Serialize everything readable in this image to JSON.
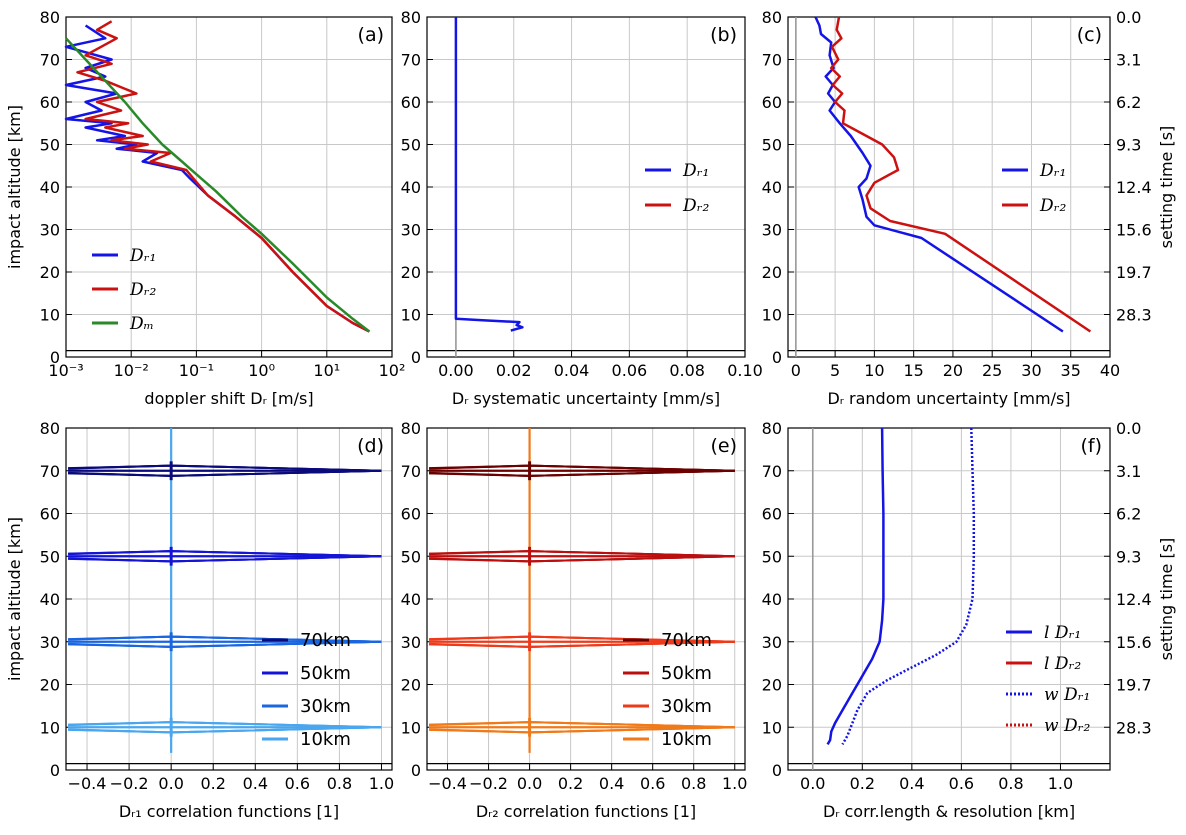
{
  "chart_data": [
    {
      "id": "a",
      "panel_label": "(a)",
      "type": "line",
      "xscale": "log",
      "xlim": [
        0.001,
        100
      ],
      "ylim": [
        0,
        80
      ],
      "xticks": [
        "10⁻³",
        "10⁻²",
        "10⁻¹",
        "10⁰",
        "10¹",
        "10²"
      ],
      "xtick_values": [
        0.001,
        0.01,
        0.1,
        1,
        10,
        100
      ],
      "yticks": [
        "0",
        "10",
        "20",
        "30",
        "40",
        "50",
        "60",
        "70",
        "80"
      ],
      "ylabel": "impact altitude [km]",
      "xlabel": "doppler shift Dᵣ [m/s]",
      "legend_position": "lower-left",
      "series": [
        {
          "name": "Dᵣ₁",
          "color": "#1414e6",
          "x": [
            0.002,
            0.004,
            0.001,
            0.005,
            0.002,
            0.004,
            0.001,
            0.006,
            0.002,
            0.0035,
            0.001,
            0.005,
            0.002,
            0.008,
            0.003,
            0.012,
            0.006,
            0.025,
            0.015,
            0.06,
            0.08,
            0.15,
            0.4,
            1,
            3,
            10,
            25,
            45
          ],
          "y": [
            78,
            75,
            73,
            70,
            68,
            66,
            64,
            62,
            60,
            58,
            56,
            55,
            54,
            52,
            51,
            50,
            49,
            48,
            46,
            44,
            42,
            38,
            33,
            28,
            20,
            12,
            8,
            6
          ]
        },
        {
          "name": "Dᵣ₂",
          "color": "#cc1111",
          "x": [
            0.005,
            0.003,
            0.006,
            0.002,
            0.005,
            0.0015,
            0.004,
            0.012,
            0.003,
            0.007,
            0.002,
            0.009,
            0.004,
            0.015,
            0.005,
            0.018,
            0.008,
            0.04,
            0.02,
            0.07,
            0.09,
            0.15,
            0.4,
            1,
            3,
            10,
            25,
            45
          ],
          "y": [
            79,
            77,
            75,
            71,
            69,
            67,
            65,
            62,
            60,
            58,
            56,
            55,
            54,
            52,
            51,
            50,
            49,
            48,
            46,
            44,
            42,
            38,
            33,
            28,
            20,
            12,
            8,
            6
          ]
        },
        {
          "name": "Dₘ",
          "color": "#2a8a2a",
          "x": [
            0.001,
            0.002,
            0.004,
            0.008,
            0.015,
            0.03,
            0.06,
            0.1,
            0.2,
            0.5,
            1,
            3,
            10,
            25,
            45
          ],
          "y": [
            75,
            70,
            65,
            60,
            55,
            50,
            46,
            43,
            39,
            33,
            29,
            22,
            14,
            9,
            6
          ]
        }
      ]
    },
    {
      "id": "b",
      "panel_label": "(b)",
      "type": "line",
      "xlim": [
        -0.01,
        0.1
      ],
      "ylim": [
        0,
        80
      ],
      "xticks": [
        "0.00",
        "0.02",
        "0.04",
        "0.06",
        "0.08",
        "0.10"
      ],
      "xtick_values": [
        0,
        0.02,
        0.04,
        0.06,
        0.08,
        0.1
      ],
      "yticks": [
        "0",
        "10",
        "20",
        "30",
        "40",
        "50",
        "60",
        "70",
        "80"
      ],
      "xlabel": "Dᵣ systematic uncertainty [mm/s]",
      "legend_position": "center-right",
      "series": [
        {
          "name": "Dᵣ₁",
          "color": "#1414e6",
          "x": [
            0,
            0,
            0,
            0.01,
            0.022,
            0.021,
            0.023,
            0.019
          ],
          "y": [
            80,
            30,
            9,
            8.6,
            8.2,
            7.5,
            7,
            6.2
          ]
        },
        {
          "name": "Dᵣ₂",
          "color": "#cc1111",
          "x": [],
          "y": []
        }
      ]
    },
    {
      "id": "c",
      "panel_label": "(c)",
      "type": "line",
      "xlim": [
        -1,
        40
      ],
      "ylim": [
        0,
        80
      ],
      "xticks": [
        "0",
        "5",
        "10",
        "15",
        "20",
        "25",
        "30",
        "35",
        "40"
      ],
      "xtick_values": [
        0,
        5,
        10,
        15,
        20,
        25,
        30,
        35,
        40
      ],
      "yticks": [
        "0",
        "10",
        "20",
        "30",
        "40",
        "50",
        "60",
        "70",
        "80"
      ],
      "right_axis_label": "setting time [s]",
      "right_ticks": [
        "0.0",
        "3.1",
        "6.2",
        "9.3",
        "12.4",
        "15.6",
        "19.7",
        "28.3"
      ],
      "right_tick_altitudes": [
        80,
        70,
        60,
        50,
        40,
        30,
        20,
        10
      ],
      "xlabel": "Dᵣ random uncertainty [mm/s]",
      "legend_position": "center-right",
      "series": [
        {
          "name": "Dᵣ₁",
          "color": "#1414e6",
          "x": [
            2.5,
            3,
            3.2,
            4.5,
            4.3,
            4.8,
            3.8,
            4.7,
            4.1,
            5,
            4.3,
            5.6,
            7,
            8.5,
            9.5,
            9,
            8,
            8.5,
            9,
            10,
            16,
            34
          ],
          "y": [
            80,
            78,
            76,
            74,
            71,
            68,
            66,
            64,
            62,
            60,
            58,
            55,
            52,
            48,
            45,
            42,
            40,
            37,
            33,
            31,
            28,
            6
          ]
        },
        {
          "name": "Dᵣ₂",
          "color": "#cc1111",
          "x": [
            5.5,
            5.2,
            5.8,
            4.6,
            5.4,
            4.5,
            5.6,
            4.7,
            5.9,
            5,
            6.2,
            6,
            9,
            11,
            12.5,
            13,
            10,
            9,
            9.5,
            12,
            19,
            37.5
          ],
          "y": [
            80,
            77,
            75,
            73,
            70,
            68,
            66,
            64,
            62,
            60,
            58,
            55,
            52,
            50,
            47,
            44,
            41,
            38,
            35,
            32,
            29,
            6
          ]
        }
      ]
    },
    {
      "id": "d",
      "panel_label": "(d)",
      "type": "line",
      "xlim": [
        -0.5,
        1.05
      ],
      "ylim": [
        0,
        80
      ],
      "xticks": [
        "−0.4",
        "−0.2",
        "0.0",
        "0.2",
        "0.4",
        "0.6",
        "0.8",
        "1.0"
      ],
      "xtick_values": [
        -0.4,
        -0.2,
        0,
        0.2,
        0.4,
        0.6,
        0.8,
        1.0
      ],
      "yticks": [
        "0",
        "10",
        "20",
        "30",
        "40",
        "50",
        "60",
        "70",
        "80"
      ],
      "ylabel": "impact altitude [km]",
      "xlabel": "Dᵣ₁ correlation functions [1]",
      "legend_position": "lower-right",
      "series": [
        {
          "name": "70km",
          "color": "#0a0a7a",
          "center_altitude": 70
        },
        {
          "name": "50km",
          "color": "#1414d6",
          "center_altitude": 50
        },
        {
          "name": "30km",
          "color": "#1a66e0",
          "center_altitude": 30
        },
        {
          "name": "10km",
          "color": "#4aa6ee",
          "center_altitude": 10
        }
      ]
    },
    {
      "id": "e",
      "panel_label": "(e)",
      "type": "line",
      "xlim": [
        -0.5,
        1.05
      ],
      "ylim": [
        0,
        80
      ],
      "xticks": [
        "−0.4",
        "−0.2",
        "0.0",
        "0.2",
        "0.4",
        "0.6",
        "0.8",
        "1.0"
      ],
      "xtick_values": [
        -0.4,
        -0.2,
        0,
        0.2,
        0.4,
        0.6,
        0.8,
        1.0
      ],
      "yticks": [
        "0",
        "10",
        "20",
        "30",
        "40",
        "50",
        "60",
        "70",
        "80"
      ],
      "xlabel": "Dᵣ₂ correlation functions [1]",
      "legend_position": "lower-right",
      "series": [
        {
          "name": "70km",
          "color": "#6a0000",
          "center_altitude": 70
        },
        {
          "name": "50km",
          "color": "#bb0e0e",
          "center_altitude": 50
        },
        {
          "name": "30km",
          "color": "#ee3a1a",
          "center_altitude": 30
        },
        {
          "name": "10km",
          "color": "#f07a1a",
          "center_altitude": 10
        }
      ]
    },
    {
      "id": "f",
      "panel_label": "(f)",
      "type": "line",
      "xlim": [
        -0.1,
        1.2
      ],
      "ylim": [
        0,
        80
      ],
      "xticks": [
        "0.0",
        "0.2",
        "0.4",
        "0.6",
        "0.8",
        "1.0"
      ],
      "xtick_values": [
        0,
        0.2,
        0.4,
        0.6,
        0.8,
        1.0
      ],
      "yticks": [
        "0",
        "10",
        "20",
        "30",
        "40",
        "50",
        "60",
        "70",
        "80"
      ],
      "right_axis_label": "setting time [s]",
      "right_ticks": [
        "0.0",
        "3.1",
        "6.2",
        "9.3",
        "12.4",
        "15.6",
        "19.7",
        "28.3"
      ],
      "right_tick_altitudes": [
        80,
        70,
        60,
        50,
        40,
        30,
        20,
        10
      ],
      "xlabel": "Dᵣ corr.length & resolution [km]",
      "legend_position": "lower-right",
      "series": [
        {
          "name": "l Dᵣ₁",
          "color": "#1414e6",
          "style": "solid",
          "x": [
            0.28,
            0.282,
            0.285,
            0.285,
            0.285,
            0.28,
            0.27,
            0.24,
            0.2,
            0.16,
            0.12,
            0.09,
            0.075,
            0.07,
            0.06
          ],
          "y": [
            80,
            70,
            60,
            50,
            40,
            35,
            30,
            26,
            22,
            18,
            14,
            11,
            9,
            7,
            6
          ]
        },
        {
          "name": "l Dᵣ₂",
          "color": "#cc1111",
          "style": "solid",
          "x": [],
          "y": []
        },
        {
          "name": "w Dᵣ₁",
          "color": "#1414e6",
          "style": "dotted",
          "x": [
            0.64,
            0.645,
            0.65,
            0.65,
            0.645,
            0.62,
            0.58,
            0.5,
            0.4,
            0.3,
            0.22,
            0.18,
            0.16,
            0.14,
            0.12
          ],
          "y": [
            80,
            70,
            60,
            50,
            40,
            34,
            30,
            27,
            24,
            21,
            18,
            14,
            11,
            8,
            6
          ]
        },
        {
          "name": "w Dᵣ₂",
          "color": "#cc1111",
          "style": "dotted",
          "x": [],
          "y": []
        }
      ]
    }
  ]
}
